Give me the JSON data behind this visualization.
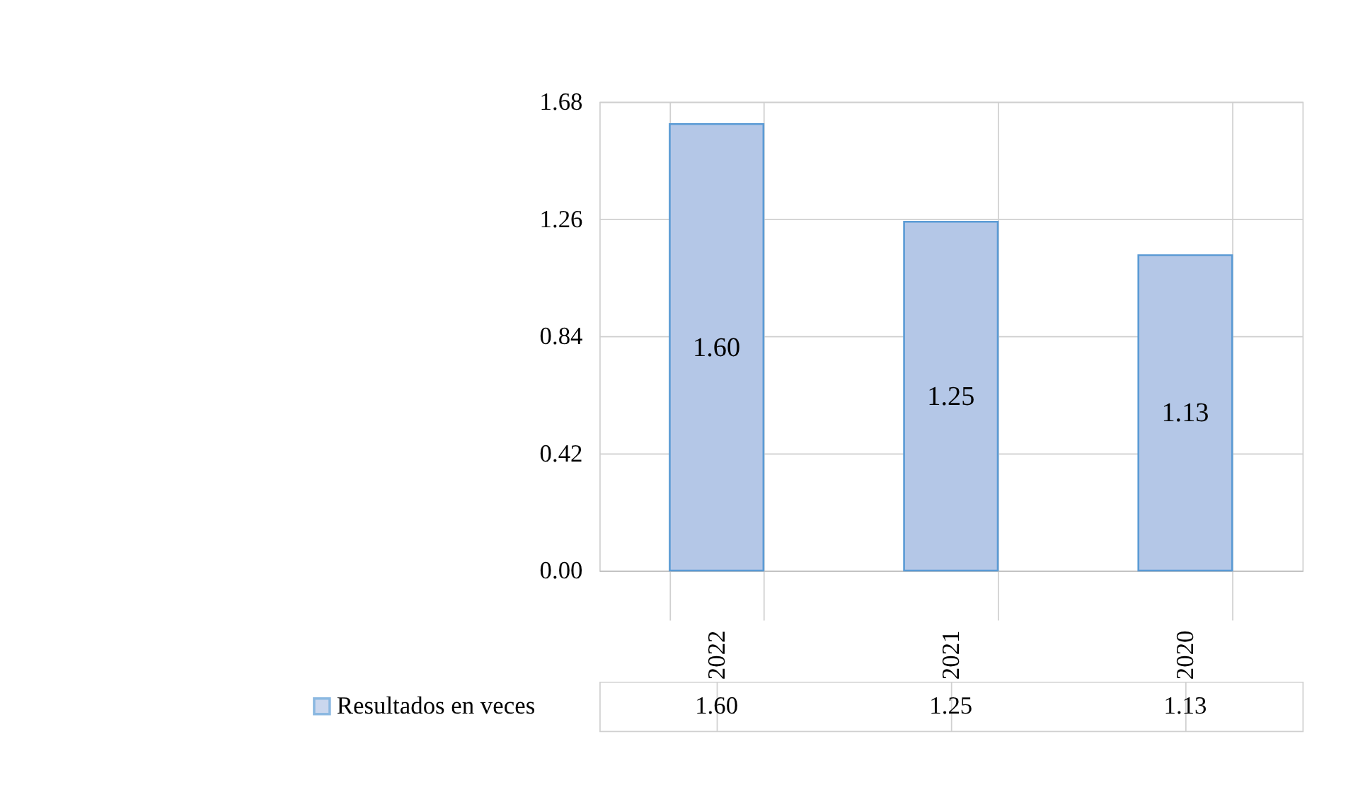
{
  "chart_data": {
    "type": "bar",
    "categories": [
      "2022",
      "2021",
      "2020"
    ],
    "series": [
      {
        "name": "Resultados en veces",
        "color": "#b4c7e7",
        "values": [
          1.6,
          1.25,
          1.13
        ],
        "value_labels": [
          "1.60",
          "1.25",
          "1.13"
        ]
      }
    ],
    "ylim": [
      0,
      1.68
    ],
    "yticks": [
      {
        "value": 0,
        "label": "0.00"
      },
      {
        "value": 0.42,
        "label": "0.42"
      },
      {
        "value": 0.84,
        "label": "0.84"
      },
      {
        "value": 1.26,
        "label": "1.26"
      },
      {
        "value": 1.68,
        "label": "1.68"
      }
    ],
    "grid": "y",
    "legend": "bottom"
  }
}
